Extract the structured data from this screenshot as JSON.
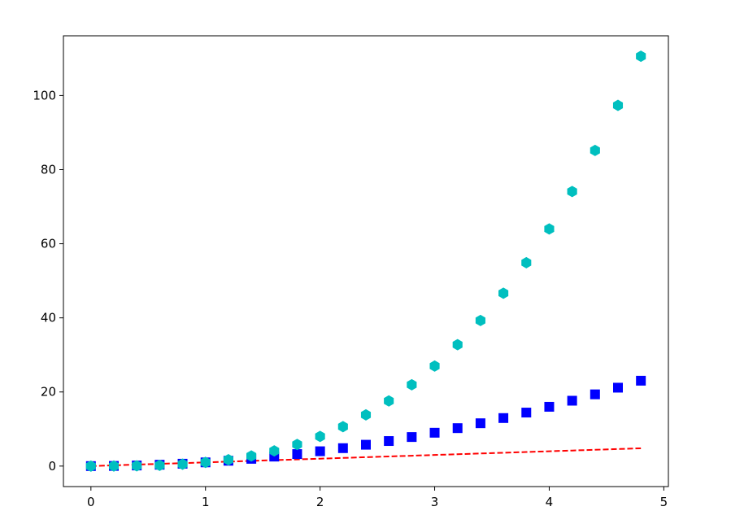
{
  "chart_data": {
    "type": "line",
    "x": [
      0,
      0.2,
      0.4,
      0.6,
      0.8,
      1,
      1.2,
      1.4,
      1.6,
      1.8,
      2,
      2.2,
      2.4,
      2.6,
      2.8,
      3,
      3.2,
      3.4,
      3.6,
      3.8,
      4,
      4.2,
      4.4,
      4.6,
      4.8
    ],
    "series": [
      {
        "color": "#ff0000",
        "linestyle": "dashed",
        "marker": "none",
        "values": [
          0,
          0.2,
          0.4,
          0.6,
          0.8,
          1,
          1.2,
          1.4,
          1.6,
          1.8,
          2,
          2.2,
          2.4,
          2.6,
          2.8,
          3,
          3.2,
          3.4,
          3.6,
          3.8,
          4,
          4.2,
          4.4,
          4.6,
          4.8
        ]
      },
      {
        "color": "#0000ff",
        "linestyle": "none",
        "marker": "square",
        "values": [
          0,
          0.04,
          0.16,
          0.36,
          0.64,
          1,
          1.44,
          1.96,
          2.56,
          3.24,
          4,
          4.84,
          5.76,
          6.76,
          7.84,
          9,
          10.24,
          11.56,
          12.96,
          14.44,
          16,
          17.64,
          19.36,
          21.16,
          23.04
        ]
      },
      {
        "color": "#00bfbf",
        "linestyle": "none",
        "marker": "hexagon",
        "values": [
          0,
          0.008,
          0.064,
          0.216,
          0.512,
          1,
          1.728,
          2.744,
          4.096,
          5.832,
          8,
          10.648,
          13.824,
          17.576,
          21.952,
          27,
          32.768,
          39.304,
          46.656,
          54.872,
          64,
          74.088,
          85.184,
          97.336,
          110.592
        ]
      }
    ],
    "xlim": [
      -0.24,
      5.04
    ],
    "ylim": [
      -5.53,
      116.12
    ],
    "xticks": [
      0,
      1,
      2,
      3,
      4,
      5
    ],
    "yticks": [
      0,
      20,
      40,
      60,
      80,
      100
    ]
  }
}
